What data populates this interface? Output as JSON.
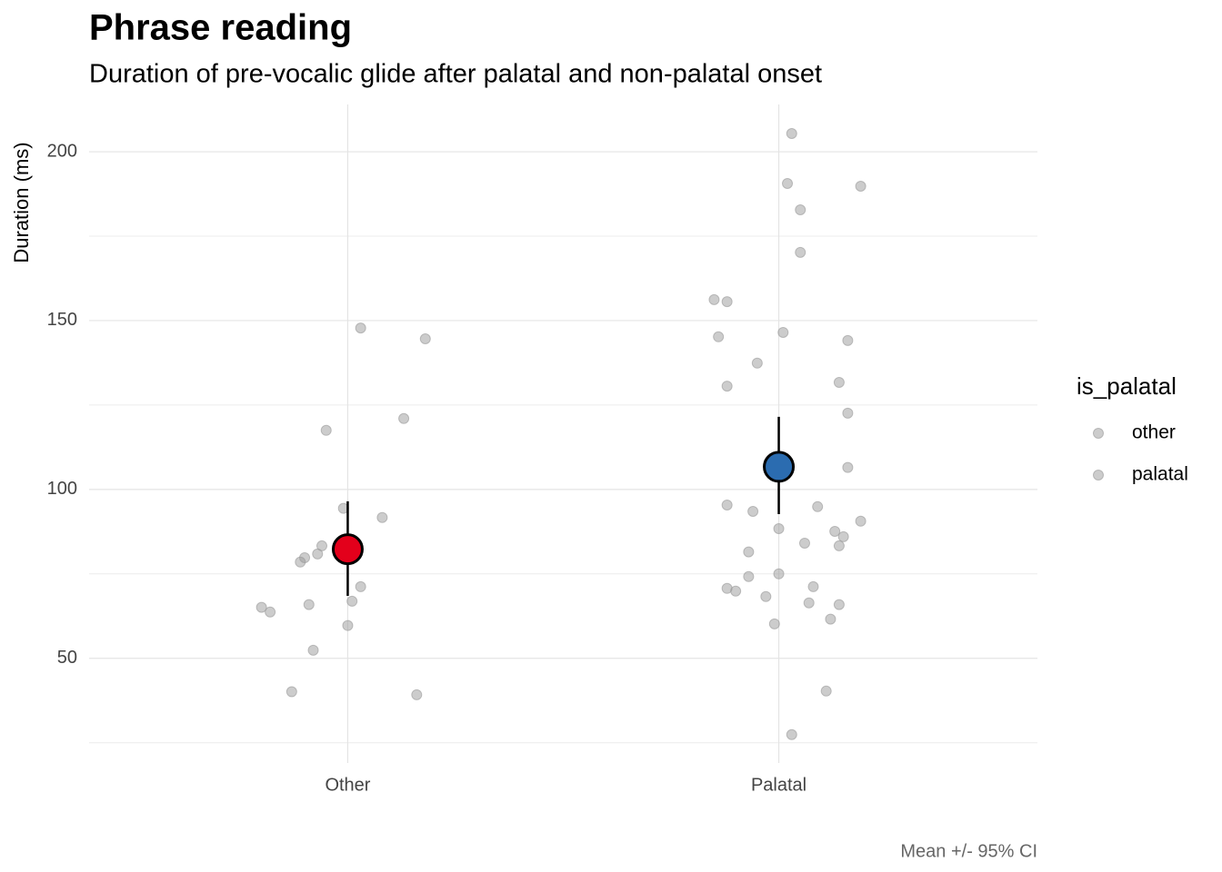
{
  "chart_data": {
    "type": "scatter",
    "title": "Phrase reading",
    "subtitle": "Duration of pre-vocalic glide after palatal and non-palatal onset",
    "y_label": "Duration (ms)",
    "caption": "Mean +/- 95% CI",
    "legend_title": "is_palatal",
    "xlim": [
      0.4,
      2.6
    ],
    "ylim": [
      19,
      214
    ],
    "xticks": [
      {
        "value": 1,
        "label": "Other"
      },
      {
        "value": 2,
        "label": "Palatal"
      }
    ],
    "yticks": [
      50,
      100,
      150,
      200
    ],
    "minor_yticks": [
      25,
      75,
      125,
      175
    ],
    "grid": true,
    "series": [
      {
        "name": "other",
        "color": "#999999",
        "x": [
          1.03,
          1.18,
          1.13,
          0.95,
          0.99,
          1.08,
          0.94,
          0.93,
          0.9,
          0.89,
          1.03,
          1.01,
          0.91,
          0.8,
          0.82,
          1.0,
          0.92,
          0.87,
          1.16
        ],
        "values": [
          147.8,
          144.6,
          121.0,
          117.5,
          94.4,
          91.7,
          83.3,
          80.9,
          79.8,
          78.5,
          71.2,
          66.9,
          65.9,
          65.1,
          63.7,
          59.7,
          52.4,
          40.1,
          39.2
        ]
      },
      {
        "name": "palatal",
        "color": "#999999",
        "x": [
          2.03,
          2.02,
          2.19,
          2.05,
          2.05,
          1.85,
          1.88,
          1.86,
          2.01,
          2.16,
          1.95,
          2.14,
          1.88,
          2.16,
          2.16,
          1.88,
          2.09,
          1.94,
          2.19,
          2.0,
          2.13,
          2.15,
          2.06,
          2.14,
          1.93,
          1.93,
          2.0,
          2.08,
          1.88,
          1.9,
          1.97,
          2.07,
          2.14,
          2.12,
          1.99,
          2.11,
          2.03
        ],
        "values": [
          205.4,
          190.6,
          189.8,
          182.8,
          170.2,
          156.2,
          155.6,
          145.2,
          146.5,
          144.1,
          137.4,
          131.7,
          130.6,
          122.6,
          106.5,
          95.4,
          94.9,
          93.5,
          90.6,
          88.4,
          87.6,
          86.0,
          84.1,
          83.3,
          81.5,
          74.2,
          75.0,
          71.2,
          70.7,
          69.9,
          68.3,
          66.4,
          65.9,
          61.6,
          60.2,
          40.3,
          27.4
        ]
      }
    ],
    "summary": {
      "x": [
        1,
        2
      ],
      "values": [
        82.3,
        106.7
      ],
      "ci_low": [
        68.5,
        92.7
      ],
      "ci_high": [
        96.5,
        121.5
      ],
      "colors": [
        "#e3001b",
        "#2b6cb0"
      ]
    }
  }
}
